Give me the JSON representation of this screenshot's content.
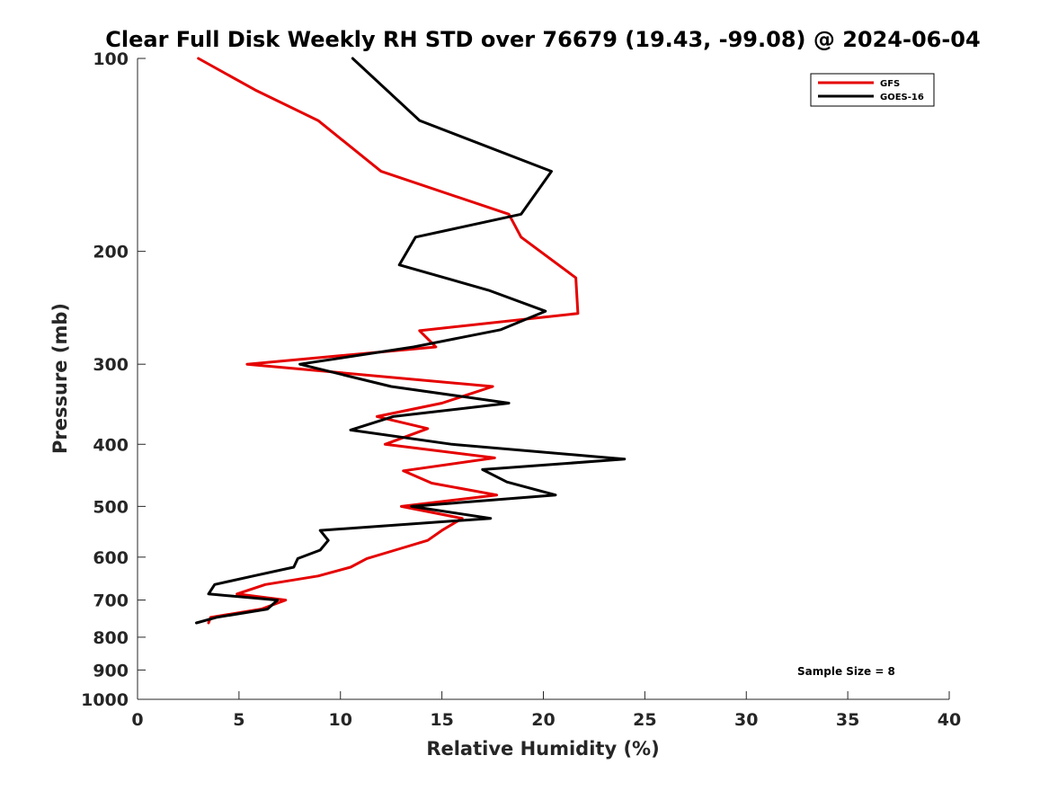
{
  "chart_data": {
    "type": "line",
    "title": "Clear Full Disk Weekly RH STD over 76679 (19.43, -99.08) @ 2024-06-04",
    "xlabel": "Relative Humidity (%)",
    "ylabel": "Pressure (mb)",
    "xlim": [
      0,
      40
    ],
    "ylim": [
      100,
      1000
    ],
    "yscale": "log",
    "y_reversed": true,
    "xticks": [
      0,
      5,
      10,
      15,
      20,
      25,
      30,
      35,
      40
    ],
    "yticks": [
      100,
      200,
      300,
      400,
      500,
      600,
      700,
      800,
      900,
      1000
    ],
    "legend_position": "top-right",
    "annotation": "Sample Size = 8",
    "series": [
      {
        "name": "GFS",
        "color": "#e50000",
        "points": [
          [
            3.0,
            100
          ],
          [
            5.8,
            112
          ],
          [
            8.9,
            125
          ],
          [
            12.0,
            150
          ],
          [
            18.3,
            175
          ],
          [
            18.9,
            190
          ],
          [
            21.6,
            220
          ],
          [
            21.7,
            250
          ],
          [
            13.9,
            266
          ],
          [
            14.7,
            282
          ],
          [
            5.4,
            300
          ],
          [
            17.5,
            325
          ],
          [
            15.0,
            345
          ],
          [
            11.8,
            362
          ],
          [
            14.3,
            378
          ],
          [
            12.2,
            400
          ],
          [
            17.6,
            420
          ],
          [
            13.1,
            440
          ],
          [
            14.5,
            460
          ],
          [
            17.7,
            480
          ],
          [
            13.0,
            500
          ],
          [
            16.0,
            522
          ],
          [
            15.0,
            545
          ],
          [
            14.3,
            565
          ],
          [
            12.7,
            585
          ],
          [
            11.3,
            603
          ],
          [
            10.5,
            622
          ],
          [
            8.9,
            642
          ],
          [
            6.3,
            662
          ],
          [
            4.9,
            685
          ],
          [
            7.3,
            700
          ],
          [
            6.1,
            723
          ],
          [
            3.6,
            745
          ],
          [
            3.5,
            760
          ]
        ]
      },
      {
        "name": "GOES-16",
        "color": "#000000",
        "points": [
          [
            10.6,
            100
          ],
          [
            13.9,
            125
          ],
          [
            20.4,
            150
          ],
          [
            18.9,
            175
          ],
          [
            13.7,
            190
          ],
          [
            12.9,
            210
          ],
          [
            17.3,
            230
          ],
          [
            20.1,
            248
          ],
          [
            17.9,
            265
          ],
          [
            13.6,
            282
          ],
          [
            8.0,
            300
          ],
          [
            12.5,
            325
          ],
          [
            18.3,
            345
          ],
          [
            12.6,
            362
          ],
          [
            10.5,
            380
          ],
          [
            15.5,
            400
          ],
          [
            24.0,
            422
          ],
          [
            17.0,
            438
          ],
          [
            18.2,
            458
          ],
          [
            20.6,
            480
          ],
          [
            13.5,
            500
          ],
          [
            17.4,
            522
          ],
          [
            9.0,
            545
          ],
          [
            9.4,
            565
          ],
          [
            9.0,
            585
          ],
          [
            7.9,
            603
          ],
          [
            7.7,
            622
          ],
          [
            5.7,
            642
          ],
          [
            3.8,
            662
          ],
          [
            3.5,
            685
          ],
          [
            6.9,
            700
          ],
          [
            6.4,
            723
          ],
          [
            3.9,
            745
          ],
          [
            2.9,
            760
          ]
        ]
      }
    ]
  }
}
